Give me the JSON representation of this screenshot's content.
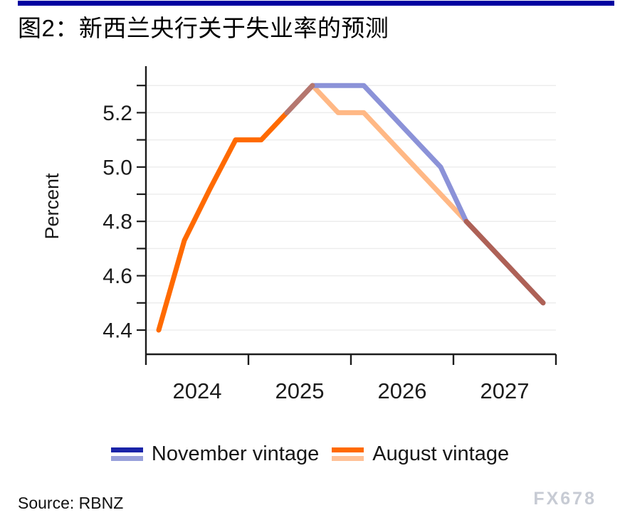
{
  "header": {
    "title": "图2：新西兰央行关于失业率的预测"
  },
  "colors": {
    "top_bar": "#0000a0",
    "axis": "#1c1c1c",
    "grid": "#ededed",
    "tick_text": "#1c1c1c",
    "watermark": "#c7cbd4"
  },
  "chart_data": {
    "type": "line",
    "title": "",
    "xlabel": "",
    "ylabel": "Percent",
    "xlim": [
      2024,
      2028
    ],
    "ylim": [
      4.31,
      5.37
    ],
    "grid": "horizontal",
    "legend_position": "bottom",
    "x_axis_ticks": [
      2024,
      2025,
      2026,
      2027,
      2028
    ],
    "x_year_labels": [
      "2024",
      "2025",
      "2026",
      "2027"
    ],
    "y_gridlines": [
      4.4,
      4.5,
      4.6,
      4.7,
      4.8,
      4.9,
      5.0,
      5.1,
      5.2,
      5.3
    ],
    "y_tick_values": [
      4.4,
      4.6,
      4.8,
      5.0,
      5.2
    ],
    "y_tick_labels": [
      "4.4",
      "4.6",
      "4.8",
      "5.0",
      "5.2"
    ],
    "series": [
      {
        "name": "November vintage",
        "x": [
          2025.375,
          2025.625,
          2025.875,
          2026.125,
          2026.375,
          2026.625,
          2026.875,
          2027.125,
          2027.375,
          2027.625,
          2027.875
        ],
        "values": [
          5.2,
          5.3,
          5.3,
          5.3,
          5.2,
          5.1,
          5.0,
          4.8,
          4.7,
          4.6,
          4.5
        ],
        "color": "#8b92d8"
      },
      {
        "name": "August vintage",
        "x": [
          2024.125,
          2024.375,
          2024.625,
          2024.875,
          2025.125,
          2025.375,
          2025.625,
          2025.875,
          2026.125,
          2026.375,
          2026.625,
          2026.875,
          2027.125,
          2027.375,
          2027.625,
          2027.875
        ],
        "values": [
          4.4,
          4.73,
          4.92,
          5.1,
          5.1,
          5.2,
          5.3,
          5.2,
          5.2,
          5.1,
          5.0,
          4.9,
          4.8,
          4.7,
          4.6,
          4.5
        ],
        "color": "#ff6a00",
        "color_forecast": "#ffb885"
      }
    ],
    "render_segments": [
      {
        "series": 1,
        "from": 0,
        "to": 6,
        "color": "#ff6a00"
      },
      {
        "series": 1,
        "from": 6,
        "to": 15,
        "color": "#ffb885"
      },
      {
        "series": 0,
        "from": 0,
        "to": 10,
        "color": "#8b92d8"
      },
      {
        "series": 1,
        "from": 5,
        "to": 6,
        "color": "#b5776f"
      },
      {
        "series": 0,
        "from": 7,
        "to": 10,
        "color": "#ae6156"
      }
    ]
  },
  "legend": {
    "items": [
      {
        "label": "November vintage",
        "line_colors": [
          "#1a24a8",
          "#98a0db"
        ]
      },
      {
        "label": "August vintage",
        "line_colors": [
          "#ff6a00",
          "#ffc196"
        ]
      }
    ]
  },
  "footer": {
    "source": "Source: RBNZ",
    "watermark": "FX678"
  }
}
